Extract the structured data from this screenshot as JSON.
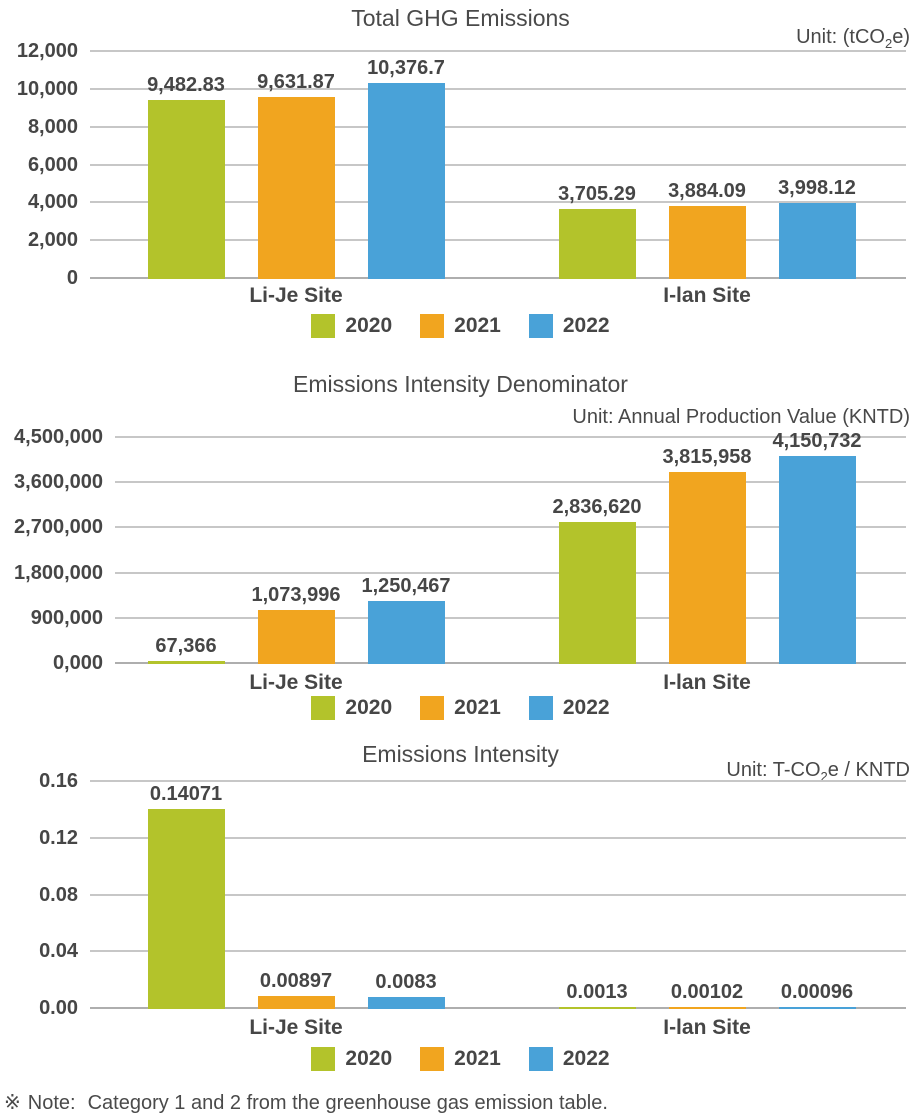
{
  "page": {
    "background": "#ffffff",
    "text_color": "#464646",
    "grid_color": "#c7c7c7"
  },
  "note": {
    "marker": "※",
    "label": "Note:",
    "text": "Category 1 and 2 from the greenhouse gas emission table."
  },
  "chart_data": [
    {
      "type": "bar",
      "title": "Total GHG Emissions",
      "unit_text": "Unit: (tCO2e)",
      "unit_segments": [
        {
          "t": "Unit: (tCO"
        },
        {
          "t": "2",
          "sub": true
        },
        {
          "t": "e)"
        }
      ],
      "categories": [
        "Li-Je Site",
        "I-lan Site"
      ],
      "y_ticks": [
        "12,000",
        "10,000",
        "8,000",
        "6,000",
        "4,000",
        "2,000",
        "0"
      ],
      "ylim": [
        0,
        12000
      ],
      "ytick_step": 2000,
      "grid": true,
      "legend_position": "bottom-center",
      "series": [
        {
          "name": "2020",
          "color": "#b3c32b",
          "values": [
            9482.83,
            3705.29
          ],
          "labels": [
            "9,482.83",
            "3,705.29"
          ]
        },
        {
          "name": "2021",
          "color": "#f1a51f",
          "values": [
            9631.87,
            3884.09
          ],
          "labels": [
            "9,631.87",
            "3,884.09"
          ]
        },
        {
          "name": "2022",
          "color": "#49a2d8",
          "values": [
            10376.7,
            3998.12
          ],
          "labels": [
            "10,376.7",
            "3,998.12"
          ]
        }
      ]
    },
    {
      "type": "bar",
      "title": "Emissions Intensity Denominator",
      "unit_text": "Unit: Annual Production Value (KNTD)",
      "unit_segments": [
        {
          "t": "Unit: Annual Production Value (KNTD)"
        }
      ],
      "categories": [
        "Li-Je Site",
        "I-lan Site"
      ],
      "y_ticks": [
        "4,500,000",
        "3,600,000",
        "2,700,000",
        "1,800,000",
        "900,000",
        "0,000"
      ],
      "ylim": [
        0,
        4500000
      ],
      "ytick_step": 900000,
      "grid": true,
      "legend_position": "bottom-center",
      "series": [
        {
          "name": "2020",
          "color": "#b3c32b",
          "values": [
            67366,
            2836620
          ],
          "labels": [
            "67,366",
            "2,836,620"
          ]
        },
        {
          "name": "2021",
          "color": "#f1a51f",
          "values": [
            1073996,
            3815958
          ],
          "labels": [
            "1,073,996",
            "3,815,958"
          ]
        },
        {
          "name": "2022",
          "color": "#49a2d8",
          "values": [
            1250467,
            4150732
          ],
          "labels": [
            "1,250,467",
            "4,150,732"
          ]
        }
      ]
    },
    {
      "type": "bar",
      "title": "Emissions Intensity",
      "unit_text": "Unit: T-CO2e / KNTD",
      "unit_segments": [
        {
          "t": "Unit: T-CO"
        },
        {
          "t": "2",
          "sub": true
        },
        {
          "t": "e / KNTD"
        }
      ],
      "categories": [
        "Li-Je Site",
        "I-lan Site"
      ],
      "y_ticks": [
        "0.16",
        "0.12",
        "0.08",
        "0.04",
        "0.00"
      ],
      "ylim": [
        0,
        0.16
      ],
      "ytick_step": 0.04,
      "grid": true,
      "legend_position": "bottom-center",
      "series": [
        {
          "name": "2020",
          "color": "#b3c32b",
          "values": [
            0.14071,
            0.0013
          ],
          "labels": [
            "0.14071",
            "0.0013"
          ]
        },
        {
          "name": "2021",
          "color": "#f1a51f",
          "values": [
            0.00897,
            0.00102
          ],
          "labels": [
            "0.00897",
            "0.00102"
          ]
        },
        {
          "name": "2022",
          "color": "#49a2d8",
          "values": [
            0.0083,
            0.00096
          ],
          "labels": [
            "0.0083",
            "0.00096"
          ]
        }
      ]
    }
  ]
}
